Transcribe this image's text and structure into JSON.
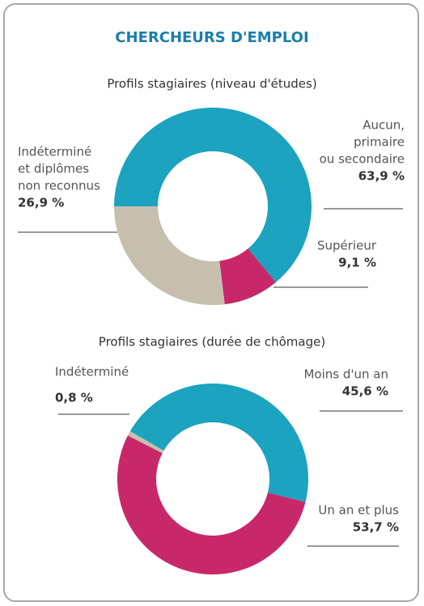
{
  "header": {
    "title": "CHERCHEURS D'EMPLOI"
  },
  "chart_data": [
    {
      "type": "donut",
      "title": "Profils stagiaires (niveau d'études)",
      "categories": [
        [
          "Aucun,",
          "primaire",
          "ou secondaire"
        ],
        [
          "Supérieur"
        ],
        [
          "Indéterminé",
          "et diplômes",
          "non reconnus"
        ]
      ],
      "values": [
        63.9,
        9.1,
        26.9
      ],
      "value_labels": [
        "63,9 %",
        "9,1 %",
        "26,9  %"
      ],
      "colors": [
        "#1ba3bf",
        "#c8286a",
        "#c6bfae"
      ]
    },
    {
      "type": "donut",
      "title": "Profils stagiaires (durée de chômage)",
      "categories": [
        [
          "Moins d'un an"
        ],
        [
          "Un an et plus"
        ],
        [
          "Indéterminé"
        ]
      ],
      "values": [
        45.6,
        53.7,
        0.8
      ],
      "value_labels": [
        "45,6 %",
        "53,7 %",
        "0,8 %"
      ],
      "colors": [
        "#1ba3bf",
        "#c8286a",
        "#c6bfae"
      ]
    }
  ]
}
